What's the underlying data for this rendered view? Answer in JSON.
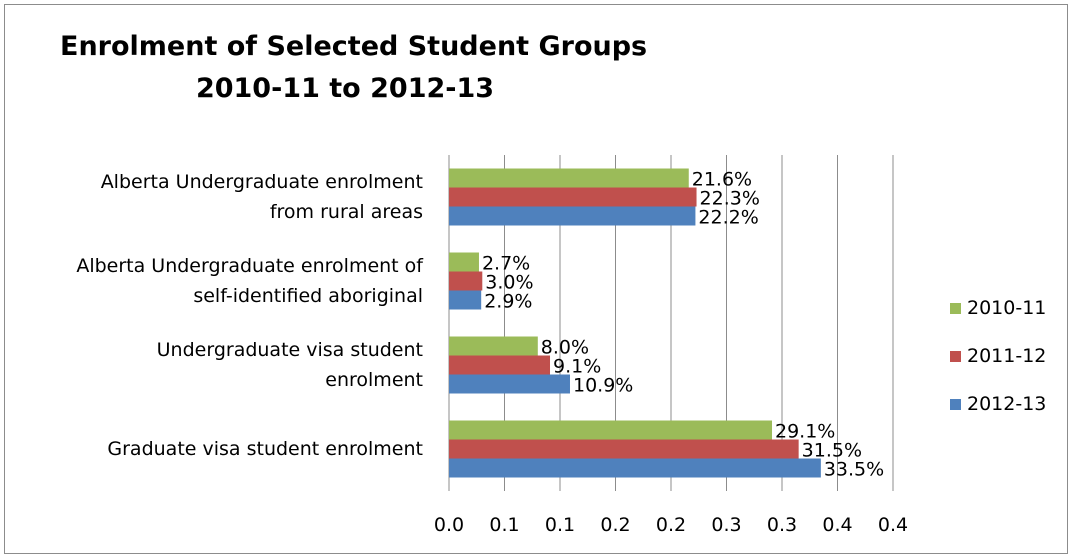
{
  "chart_data": {
    "type": "bar",
    "orientation": "horizontal",
    "title": [
      "Enrolment of Selected Student Groups",
      "2010-11 to 2012-13"
    ],
    "categories": [
      [
        "Alberta Undergraduate enrolment",
        "from rural areas"
      ],
      [
        "Alberta Undergraduate enrolment of",
        "self-identified aboriginal"
      ],
      [
        "Undergraduate visa student",
        "enrolment"
      ],
      [
        "Graduate visa student enrolment"
      ]
    ],
    "series": [
      {
        "name": "2010-11",
        "color": "#9bbb59",
        "values": [
          0.216,
          0.027,
          0.08,
          0.291
        ],
        "labels": [
          "21.6%",
          "2.7%",
          "8.0%",
          "29.1%"
        ]
      },
      {
        "name": "2011-12",
        "color": "#c0504d",
        "values": [
          0.223,
          0.03,
          0.091,
          0.315
        ],
        "labels": [
          "22.3%",
          "3.0%",
          "9.1%",
          "31.5%"
        ]
      },
      {
        "name": "2012-13",
        "color": "#4f81bd",
        "values": [
          0.222,
          0.029,
          0.109,
          0.335
        ],
        "labels": [
          "22.2%",
          "2.9%",
          "10.9%",
          "33.5%"
        ]
      }
    ],
    "x_ticks": [
      "0.0",
      "0.1",
      "0.1",
      "0.2",
      "0.2",
      "0.3",
      "0.3",
      "0.4",
      "0.4"
    ],
    "xlim": [
      0,
      0.4
    ],
    "grid": "vertical",
    "legend_position": "right"
  }
}
